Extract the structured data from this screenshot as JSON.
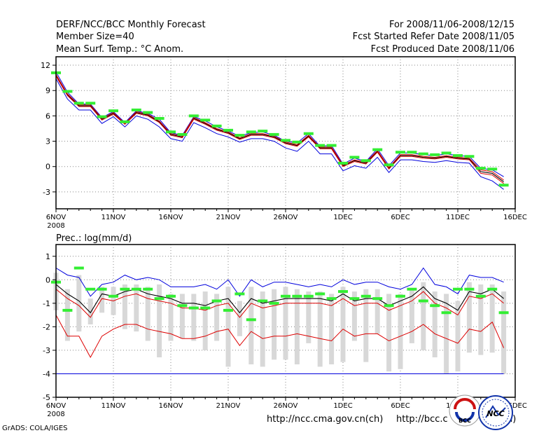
{
  "header": {
    "title": "DERF/NCC/BCC Monthly Forecast",
    "member_size": "Member Size=40",
    "variable": "Mean Surf. Temp.: °C Anom.",
    "period": "For 2008/11/06-2008/12/15",
    "started": "Fcst Started Refer Date 2008/11/05",
    "produced": "Fcst Produced Date 2008/11/06"
  },
  "footer": {
    "grads": "GrADS: COLA/IGES",
    "url1": "http://ncc.cma.gov.cn(ch)",
    "url2": "http://bcc.c",
    "url2_tail": "n)",
    "logo1_text": "BCC",
    "logo2_text": "NCC"
  },
  "colors": {
    "upper": "#0000dd",
    "lower": "#dd0000",
    "mean": "#000000",
    "green": "#33ee33",
    "box": "#d8d8d8",
    "grid": "#888888"
  },
  "chart_data": [
    {
      "name": "temperature",
      "type": "line",
      "title": "Mean Surf. Temp.: °C Anom.",
      "xlabel": "",
      "ylabel": "°C",
      "ylim": [
        -5,
        13
      ],
      "yticks": [
        -3,
        0,
        3,
        6,
        9,
        12
      ],
      "xlim": [
        0,
        40
      ],
      "xticks": [
        {
          "day": 0,
          "label": "6NOV",
          "sub": "2008"
        },
        {
          "day": 5,
          "label": "11NOV"
        },
        {
          "day": 10,
          "label": "16NOV"
        },
        {
          "day": 15,
          "label": "21NOV"
        },
        {
          "day": 20,
          "label": "26NOV"
        },
        {
          "day": 25,
          "label": "1DEC"
        },
        {
          "day": 30,
          "label": "6DEC"
        },
        {
          "day": 35,
          "label": "11DEC"
        },
        {
          "day": 40,
          "label": "16DEC"
        }
      ],
      "x": [
        0,
        1,
        2,
        3,
        4,
        5,
        6,
        7,
        8,
        9,
        10,
        11,
        12,
        13,
        14,
        15,
        16,
        17,
        18,
        19,
        20,
        21,
        22,
        23,
        24,
        25,
        26,
        27,
        28,
        29,
        30,
        31,
        32,
        33,
        34,
        35,
        36,
        37,
        38,
        39
      ],
      "series": [
        {
          "name": "ensemble max",
          "color": "#0000dd",
          "values": [
            11.2,
            8.8,
            7.4,
            7.4,
            5.8,
            6.5,
            5.2,
            6.6,
            6.3,
            5.6,
            4.0,
            3.7,
            5.9,
            5.4,
            4.7,
            4.2,
            3.6,
            4.0,
            4.1,
            3.7,
            3.0,
            2.8,
            3.9,
            2.4,
            2.5,
            0.3,
            1.0,
            0.6,
            2.1,
            0.1,
            1.6,
            1.6,
            1.4,
            1.3,
            1.5,
            1.3,
            1.2,
            -0.2,
            -0.4,
            -1.2
          ]
        },
        {
          "name": "ensemble mean",
          "color": "#000000",
          "values": [
            10.8,
            8.5,
            7.2,
            7.2,
            5.6,
            6.3,
            5.1,
            6.4,
            6.1,
            5.3,
            3.8,
            3.5,
            5.7,
            5.1,
            4.4,
            4.0,
            3.3,
            3.8,
            3.8,
            3.5,
            2.8,
            2.5,
            3.6,
            2.2,
            2.2,
            0.1,
            0.7,
            0.4,
            1.8,
            -0.2,
            1.3,
            1.3,
            1.1,
            1.0,
            1.2,
            1.0,
            0.9,
            -0.6,
            -0.8,
            -1.8
          ]
        },
        {
          "name": "ensemble min",
          "color": "#0000dd",
          "values": [
            10.4,
            8.0,
            6.7,
            6.7,
            5.1,
            5.9,
            4.7,
            6.0,
            5.6,
            4.7,
            3.3,
            3.0,
            5.2,
            4.6,
            3.9,
            3.5,
            2.9,
            3.3,
            3.3,
            3.0,
            2.2,
            1.8,
            3.0,
            1.5,
            1.5,
            -0.5,
            0.1,
            -0.2,
            1.1,
            -0.7,
            0.8,
            0.8,
            0.6,
            0.5,
            0.7,
            0.5,
            0.4,
            -1.2,
            -1.7,
            -2.7
          ]
        },
        {
          "name": "red upper",
          "color": "#dd0000",
          "values": [
            10.9,
            8.6,
            7.3,
            7.3,
            5.7,
            6.4,
            5.1,
            6.5,
            6.2,
            5.4,
            3.9,
            3.6,
            5.8,
            5.2,
            4.5,
            4.1,
            3.4,
            3.9,
            3.9,
            3.6,
            2.9,
            2.6,
            3.7,
            2.3,
            2.3,
            0.2,
            0.8,
            0.5,
            1.9,
            -0.1,
            1.4,
            1.4,
            1.2,
            1.1,
            1.3,
            1.1,
            1.0,
            -0.4,
            -0.6,
            -1.6
          ]
        },
        {
          "name": "red lower",
          "color": "#dd0000",
          "values": [
            10.7,
            8.4,
            7.1,
            7.1,
            5.5,
            6.2,
            5.0,
            6.3,
            6.0,
            5.2,
            3.7,
            3.4,
            5.6,
            5.0,
            4.3,
            3.9,
            3.2,
            3.7,
            3.7,
            3.4,
            2.7,
            2.4,
            3.5,
            2.1,
            2.1,
            0.0,
            0.6,
            0.3,
            1.7,
            -0.3,
            1.2,
            1.2,
            1.0,
            0.9,
            1.1,
            0.9,
            0.8,
            -0.8,
            -1.0,
            -2.0
          ]
        }
      ],
      "markers": {
        "name": "control",
        "color": "#33ee33",
        "values": [
          11.1,
          8.9,
          7.5,
          7.5,
          5.9,
          6.6,
          5.3,
          6.7,
          6.4,
          5.7,
          4.1,
          3.8,
          6.0,
          5.5,
          4.8,
          4.3,
          3.7,
          4.1,
          4.2,
          3.8,
          3.1,
          2.9,
          3.9,
          2.5,
          2.5,
          0.4,
          1.1,
          0.7,
          2.0,
          0.2,
          1.7,
          1.7,
          1.5,
          1.4,
          1.6,
          1.3,
          1.2,
          -0.2,
          -0.3,
          -2.2
        ]
      }
    },
    {
      "name": "precipitation",
      "type": "line",
      "title": "Prec.: log(mm/d)",
      "xlabel": "",
      "ylabel": "log(mm/d)",
      "ylim": [
        -5,
        1.5
      ],
      "yticks": [
        -5,
        -4,
        -3,
        -2,
        -1,
        0,
        1
      ],
      "xlim": [
        0,
        40
      ],
      "xticks": [
        {
          "day": 0,
          "label": "6NOV",
          "sub": "2008"
        },
        {
          "day": 5,
          "label": "11NOV"
        },
        {
          "day": 10,
          "label": "16NOV"
        },
        {
          "day": 15,
          "label": "21NOV"
        },
        {
          "day": 20,
          "label": "26NOV"
        },
        {
          "day": 25,
          "label": "1DEC"
        },
        {
          "day": 30,
          "label": "6DEC"
        },
        {
          "day": 35,
          "label": "11DEC"
        },
        {
          "day": 40,
          "label": "16DEC"
        }
      ],
      "x": [
        0,
        1,
        2,
        3,
        4,
        5,
        6,
        7,
        8,
        9,
        10,
        11,
        12,
        13,
        14,
        15,
        16,
        17,
        18,
        19,
        20,
        21,
        22,
        23,
        24,
        25,
        26,
        27,
        28,
        29,
        30,
        31,
        32,
        33,
        34,
        35,
        36,
        37,
        38,
        39
      ],
      "series": [
        {
          "name": "upper envelope",
          "color": "#0000dd",
          "values": [
            0.5,
            0.2,
            0.1,
            -0.7,
            -0.2,
            -0.1,
            0.2,
            0.0,
            0.1,
            0.0,
            -0.3,
            -0.3,
            -0.3,
            -0.2,
            -0.4,
            0.0,
            -0.7,
            0.0,
            -0.3,
            -0.1,
            -0.1,
            -0.2,
            -0.3,
            -0.2,
            -0.3,
            0.0,
            -0.2,
            -0.1,
            -0.1,
            -0.3,
            -0.4,
            -0.2,
            0.5,
            -0.2,
            -0.3,
            -0.6,
            0.2,
            0.1,
            0.1,
            -0.1
          ]
        },
        {
          "name": "mean",
          "color": "#000000",
          "values": [
            -0.2,
            -0.6,
            -0.9,
            -1.4,
            -0.6,
            -0.7,
            -0.5,
            -0.4,
            -0.6,
            -0.7,
            -0.8,
            -1.0,
            -1.0,
            -1.1,
            -0.9,
            -0.8,
            -1.4,
            -0.8,
            -1.0,
            -0.9,
            -0.8,
            -0.8,
            -0.8,
            -0.8,
            -0.9,
            -0.6,
            -0.9,
            -0.8,
            -0.8,
            -1.1,
            -0.9,
            -0.7,
            -0.3,
            -0.8,
            -1.0,
            -1.3,
            -0.5,
            -0.6,
            -0.4,
            -0.8
          ]
        },
        {
          "name": "upper percentile",
          "color": "#dd0000",
          "values": [
            -0.4,
            -0.8,
            -1.1,
            -1.6,
            -0.8,
            -0.9,
            -0.7,
            -0.6,
            -0.8,
            -0.9,
            -1.0,
            -1.2,
            -1.2,
            -1.3,
            -1.1,
            -1.0,
            -1.6,
            -1.0,
            -1.2,
            -1.1,
            -1.0,
            -1.0,
            -1.0,
            -1.0,
            -1.1,
            -0.8,
            -1.1,
            -1.0,
            -1.0,
            -1.3,
            -1.1,
            -0.9,
            -0.5,
            -1.0,
            -1.2,
            -1.5,
            -0.7,
            -0.8,
            -0.6,
            -1.0
          ]
        },
        {
          "name": "lower percentile",
          "color": "#dd0000",
          "values": [
            -1.5,
            -2.4,
            -2.4,
            -3.3,
            -2.4,
            -2.1,
            -1.9,
            -1.9,
            -2.1,
            -2.2,
            -2.3,
            -2.5,
            -2.5,
            -2.4,
            -2.2,
            -2.1,
            -2.8,
            -2.2,
            -2.5,
            -2.4,
            -2.4,
            -2.3,
            -2.4,
            -2.5,
            -2.6,
            -2.1,
            -2.4,
            -2.3,
            -2.3,
            -2.6,
            -2.4,
            -2.2,
            -1.9,
            -2.3,
            -2.5,
            -2.7,
            -2.1,
            -2.2,
            -1.8,
            -2.9
          ]
        },
        {
          "name": "climatological min",
          "color": "#0000dd",
          "values": [
            -4,
            -4,
            -4,
            -4,
            -4,
            -4,
            -4,
            -4,
            -4,
            -4,
            -4,
            -4,
            -4,
            -4,
            -4,
            -4,
            -4,
            -4,
            -4,
            -4,
            -4,
            -4,
            -4,
            -4,
            -4,
            -4,
            -4,
            -4,
            -4,
            -4,
            -4,
            -4,
            -4,
            -4,
            -4,
            -4,
            -4,
            -4,
            -4,
            -4
          ]
        }
      ],
      "boxes": {
        "top": [
          0.3,
          -0.4,
          0.2,
          -0.8,
          -0.3,
          -0.3,
          -0.2,
          -0.2,
          -0.3,
          -0.2,
          -0.6,
          -0.6,
          -0.6,
          -0.5,
          -0.6,
          -0.3,
          -0.9,
          -0.3,
          -0.5,
          -0.4,
          -0.3,
          -0.4,
          -0.5,
          -0.5,
          -0.6,
          -0.3,
          -0.5,
          -0.4,
          -0.4,
          -0.6,
          -0.6,
          -0.4,
          -0.1,
          -0.5,
          -0.6,
          -0.9,
          -0.1,
          -0.2,
          -0.2,
          -0.5
        ],
        "bottom": [
          -1.3,
          -2.6,
          -2.2,
          -1.9,
          -1.4,
          -1.5,
          -2.1,
          -2.2,
          -2.6,
          -3.3,
          -2.6,
          -2.5,
          -2.6,
          -3.0,
          -2.6,
          -3.7,
          -2.4,
          -3.6,
          -3.7,
          -3.4,
          -3.4,
          -3.6,
          -2.7,
          -3.7,
          -3.6,
          -3.5,
          -2.6,
          -3.5,
          -2.3,
          -3.9,
          -3.8,
          -2.7,
          -3.0,
          -3.3,
          -4.0,
          -3.9,
          -3.1,
          -3.2,
          -3.1,
          -4.0
        ]
      },
      "markers": {
        "name": "control",
        "color": "#33ee33",
        "values": [
          -0.1,
          -1.3,
          0.5,
          -0.4,
          -0.4,
          -0.7,
          -0.4,
          -0.4,
          -0.4,
          -0.8,
          -0.7,
          -1.1,
          -1.2,
          -1.2,
          -0.9,
          -1.3,
          -0.6,
          -1.7,
          -0.9,
          -1.0,
          -0.7,
          -0.7,
          -0.7,
          -0.6,
          -0.8,
          -0.5,
          -0.8,
          -0.7,
          -0.8,
          -1.1,
          -0.7,
          -0.4,
          -0.9,
          -1.1,
          -1.4,
          -0.4,
          -0.4,
          -0.7,
          -0.4,
          -1.4
        ]
      }
    }
  ]
}
